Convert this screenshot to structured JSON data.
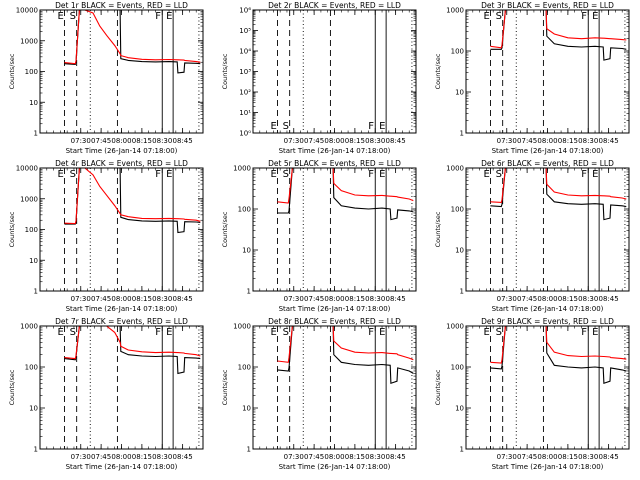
{
  "colors": {
    "black_series": "#000000",
    "red_series": "#ff0000",
    "background": "#ffffff",
    "axes": "#000000"
  },
  "shared": {
    "xlabel": "Start Time (26-Jan-14 07:18:00)",
    "ylabel": "Counts/sec",
    "xticks": [
      {
        "label": "07:30",
        "minutes": 30
      },
      {
        "label": "07:45",
        "minutes": 45
      },
      {
        "label": "08:00",
        "minutes": 60
      },
      {
        "label": "08:15",
        "minutes": 75
      },
      {
        "label": "08:30",
        "minutes": 90
      },
      {
        "label": "08:45",
        "minutes": 105
      }
    ],
    "xlim_minutes_from_start": [
      0,
      120
    ],
    "markers": [
      {
        "label": "E",
        "minutes": 18,
        "style": "dashed"
      },
      {
        "label": "S",
        "minutes": 27,
        "style": "dashed"
      },
      {
        "label": "",
        "minutes": 37,
        "style": "dotted"
      },
      {
        "label": "",
        "minutes": 57,
        "style": "dashed"
      },
      {
        "label": "F",
        "minutes": 90,
        "style": "solid"
      },
      {
        "label": "E",
        "minutes": 98,
        "style": "solid"
      },
      {
        "label": "",
        "minutes": 117,
        "style": "dotted"
      }
    ]
  },
  "chart_data": [
    {
      "type": "line",
      "title": "Det 1r BLACK = Events, RED = LLD",
      "yscale": "log",
      "ylim": [
        1,
        10000
      ],
      "yticks": [
        {
          "v": 1,
          "label": "1"
        },
        {
          "v": 10,
          "label": "10"
        },
        {
          "v": 100,
          "label": "100"
        },
        {
          "v": 1000,
          "label": "1000"
        },
        {
          "v": 10000,
          "label": "10000"
        }
      ],
      "x_minutes": [
        18,
        26,
        26.5,
        29,
        33,
        39,
        44,
        49,
        55,
        59,
        59.5,
        65,
        75,
        85,
        95,
        101,
        101.5,
        106,
        106.5,
        115,
        118
      ],
      "series": [
        {
          "name": "Events",
          "color": "#000000",
          "values": [
            180,
            170,
            200,
            10000,
            10000,
            10000,
            10000,
            10000,
            10000,
            10000,
            260,
            230,
            210,
            205,
            210,
            205,
            90,
            95,
            190,
            185,
            180
          ]
        },
        {
          "name": "LLD",
          "color": "#ff0000",
          "values": [
            195,
            180,
            220,
            10000,
            10000,
            8000,
            3000,
            1500,
            700,
            380,
            330,
            280,
            250,
            240,
            245,
            240,
            240,
            235,
            230,
            210,
            200
          ]
        }
      ]
    },
    {
      "type": "line",
      "title": "Det 2r BLACK = Events, RED = LLD",
      "yscale": "log",
      "ylim": [
        1,
        1000000
      ],
      "yticks": [
        {
          "v": 1,
          "label": "10⁰"
        },
        {
          "v": 10,
          "label": "10¹"
        },
        {
          "v": 100,
          "label": "10²"
        },
        {
          "v": 1000,
          "label": "10³"
        },
        {
          "v": 10000,
          "label": "10⁴"
        },
        {
          "v": 100000,
          "label": "10⁵"
        },
        {
          "v": 1000000,
          "label": "10⁶"
        }
      ],
      "x_minutes": [],
      "series": []
    },
    {
      "type": "line",
      "title": "Det 3r BLACK = Events, RED = LLD",
      "yscale": "log",
      "ylim": [
        1,
        1000
      ],
      "yticks": [
        {
          "v": 1,
          "label": "1"
        },
        {
          "v": 10,
          "label": "10"
        },
        {
          "v": 100,
          "label": "100"
        },
        {
          "v": 1000,
          "label": "1000"
        }
      ],
      "x_minutes": [
        18,
        26,
        26.5,
        29,
        33,
        39,
        44,
        49,
        55,
        59,
        59.5,
        65,
        75,
        85,
        95,
        101,
        101.5,
        106,
        106.5,
        115,
        118
      ],
      "series": [
        {
          "name": "Events",
          "color": "#000000",
          "values": [
            110,
            110,
            120,
            1000,
            1000,
            1000,
            1000,
            1000,
            1000,
            1000,
            230,
            150,
            130,
            125,
            130,
            125,
            60,
            65,
            120,
            115,
            110
          ]
        },
        {
          "name": "LLD",
          "color": "#ff0000",
          "values": [
            130,
            120,
            140,
            1000,
            1000,
            1000,
            1000,
            1000,
            1000,
            1000,
            350,
            260,
            210,
            200,
            210,
            205,
            205,
            200,
            200,
            190,
            185
          ]
        }
      ]
    },
    {
      "type": "line",
      "title": "Det 4r BLACK = Events, RED = LLD",
      "yscale": "log",
      "ylim": [
        1,
        10000
      ],
      "yticks": [
        {
          "v": 1,
          "label": "1"
        },
        {
          "v": 10,
          "label": "10"
        },
        {
          "v": 100,
          "label": "100"
        },
        {
          "v": 1000,
          "label": "1000"
        },
        {
          "v": 10000,
          "label": "10000"
        }
      ],
      "x_minutes": [
        18,
        26,
        26.5,
        29,
        33,
        39,
        44,
        49,
        55,
        59,
        59.5,
        65,
        75,
        85,
        95,
        101,
        101.5,
        106,
        106.5,
        115,
        118
      ],
      "series": [
        {
          "name": "Events",
          "color": "#000000",
          "values": [
            150,
            150,
            170,
            10000,
            10000,
            10000,
            10000,
            10000,
            10000,
            10000,
            250,
            210,
            190,
            185,
            190,
            185,
            80,
            85,
            180,
            175,
            170
          ]
        },
        {
          "name": "LLD",
          "color": "#ff0000",
          "values": [
            160,
            155,
            190,
            10000,
            10000,
            6000,
            2500,
            1300,
            600,
            330,
            300,
            260,
            230,
            225,
            230,
            225,
            225,
            220,
            215,
            200,
            185
          ]
        }
      ]
    },
    {
      "type": "line",
      "title": "Det 5r BLACK = Events, RED = LLD",
      "yscale": "log",
      "ylim": [
        1,
        1000
      ],
      "yticks": [
        {
          "v": 1,
          "label": "1"
        },
        {
          "v": 10,
          "label": "10"
        },
        {
          "v": 100,
          "label": "100"
        },
        {
          "v": 1000,
          "label": "1000"
        }
      ],
      "x_minutes": [
        18,
        26,
        26.5,
        29,
        33,
        39,
        44,
        49,
        55,
        59,
        59.5,
        65,
        75,
        85,
        95,
        101,
        101.5,
        106,
        106.5,
        115,
        118
      ],
      "series": [
        {
          "name": "Events",
          "color": "#000000",
          "values": [
            80,
            80,
            90,
            1000,
            1000,
            1000,
            1000,
            1000,
            1000,
            1000,
            190,
            120,
            105,
            100,
            105,
            100,
            55,
            60,
            95,
            90,
            85
          ]
        },
        {
          "name": "LLD",
          "color": "#ff0000",
          "values": [
            150,
            140,
            180,
            1000,
            1000,
            1000,
            1000,
            1000,
            1000,
            1000,
            420,
            280,
            220,
            210,
            215,
            205,
            205,
            200,
            195,
            175,
            160
          ]
        }
      ]
    },
    {
      "type": "line",
      "title": "Det 6r BLACK = Events, RED = LLD",
      "yscale": "log",
      "ylim": [
        1,
        1000
      ],
      "yticks": [
        {
          "v": 1,
          "label": "1"
        },
        {
          "v": 10,
          "label": "10"
        },
        {
          "v": 100,
          "label": "100"
        },
        {
          "v": 1000,
          "label": "1000"
        }
      ],
      "x_minutes": [
        18,
        26,
        26.5,
        29,
        33,
        39,
        44,
        49,
        55,
        59,
        59.5,
        65,
        75,
        85,
        95,
        101,
        101.5,
        106,
        106.5,
        115,
        118
      ],
      "series": [
        {
          "name": "Events",
          "color": "#000000",
          "values": [
            120,
            115,
            130,
            1000,
            1000,
            1000,
            1000,
            1000,
            1000,
            1000,
            230,
            150,
            135,
            130,
            135,
            130,
            55,
            60,
            125,
            120,
            115
          ]
        },
        {
          "name": "LLD",
          "color": "#ff0000",
          "values": [
            150,
            145,
            170,
            1000,
            1000,
            1000,
            1000,
            1000,
            1000,
            1000,
            400,
            260,
            220,
            210,
            215,
            210,
            210,
            205,
            200,
            185,
            175
          ]
        }
      ]
    },
    {
      "type": "line",
      "title": "Det 7r BLACK = Events, RED = LLD",
      "yscale": "log",
      "ylim": [
        1,
        1000
      ],
      "yticks": [
        {
          "v": 1,
          "label": "1"
        },
        {
          "v": 10,
          "label": "10"
        },
        {
          "v": 100,
          "label": "100"
        },
        {
          "v": 1000,
          "label": "1000"
        }
      ],
      "x_minutes": [
        18,
        26,
        26.5,
        29,
        33,
        39,
        44,
        49,
        55,
        59,
        59.5,
        65,
        75,
        85,
        95,
        101,
        101.5,
        106,
        106.5,
        115,
        118
      ],
      "series": [
        {
          "name": "Events",
          "color": "#000000",
          "values": [
            160,
            150,
            175,
            1000,
            1000,
            1000,
            1000,
            1000,
            1000,
            1000,
            240,
            200,
            185,
            180,
            185,
            180,
            70,
            75,
            170,
            165,
            160
          ]
        },
        {
          "name": "LLD",
          "color": "#ff0000",
          "values": [
            170,
            160,
            190,
            1000,
            1000,
            1000,
            1000,
            1000,
            700,
            400,
            320,
            260,
            235,
            225,
            230,
            225,
            225,
            220,
            215,
            200,
            185
          ]
        }
      ]
    },
    {
      "type": "line",
      "title": "Det 8r BLACK = Events, RED = LLD",
      "yscale": "log",
      "ylim": [
        1,
        1000
      ],
      "yticks": [
        {
          "v": 1,
          "label": "1"
        },
        {
          "v": 10,
          "label": "10"
        },
        {
          "v": 100,
          "label": "100"
        },
        {
          "v": 1000,
          "label": "1000"
        }
      ],
      "x_minutes": [
        18,
        26,
        26.5,
        29,
        33,
        39,
        44,
        49,
        55,
        59,
        59.5,
        65,
        75,
        85,
        95,
        101,
        101.5,
        106,
        106.5,
        115,
        118
      ],
      "series": [
        {
          "name": "Events",
          "color": "#000000",
          "values": [
            85,
            80,
            95,
            1000,
            1000,
            1000,
            1000,
            1000,
            1000,
            1000,
            200,
            130,
            115,
            110,
            115,
            110,
            40,
            45,
            95,
            80,
            70
          ]
        },
        {
          "name": "LLD",
          "color": "#ff0000",
          "values": [
            140,
            130,
            170,
            1000,
            1000,
            1000,
            1000,
            1000,
            1000,
            1000,
            430,
            290,
            230,
            220,
            225,
            215,
            215,
            210,
            200,
            165,
            150
          ]
        }
      ]
    },
    {
      "type": "line",
      "title": "Det 9r BLACK = Events, RED = LLD",
      "yscale": "log",
      "ylim": [
        1,
        1000
      ],
      "yticks": [
        {
          "v": 1,
          "label": "1"
        },
        {
          "v": 10,
          "label": "10"
        },
        {
          "v": 100,
          "label": "100"
        },
        {
          "v": 1000,
          "label": "1000"
        }
      ],
      "x_minutes": [
        18,
        26,
        26.5,
        29,
        33,
        39,
        44,
        49,
        55,
        59,
        59.5,
        65,
        75,
        85,
        95,
        101,
        101.5,
        106,
        106.5,
        115,
        118
      ],
      "series": [
        {
          "name": "Events",
          "color": "#000000",
          "values": [
            95,
            90,
            105,
            1000,
            1000,
            1000,
            1000,
            1000,
            1000,
            1000,
            220,
            110,
            100,
            95,
            100,
            95,
            40,
            45,
            95,
            85,
            80
          ]
        },
        {
          "name": "LLD",
          "color": "#ff0000",
          "values": [
            130,
            125,
            150,
            1000,
            1000,
            1000,
            1000,
            1000,
            1000,
            1000,
            400,
            230,
            190,
            180,
            185,
            180,
            180,
            175,
            170,
            160,
            155
          ]
        }
      ]
    }
  ]
}
